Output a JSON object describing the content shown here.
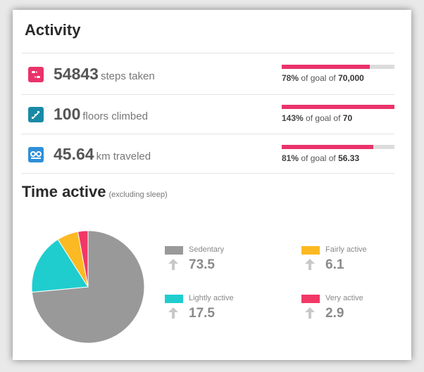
{
  "header": {
    "title": "Activity"
  },
  "stats": [
    {
      "icon": "footsteps-icon",
      "value": "54843",
      "unit": "steps taken",
      "percent": "78%",
      "goal_text": "of goal of",
      "goal_value": "70,000",
      "progress": 0.78,
      "color": "#e9336a"
    },
    {
      "icon": "stairs-icon",
      "value": "100",
      "unit": "floors climbed",
      "percent": "143%",
      "goal_text": "of goal of",
      "goal_value": "70",
      "progress": 1.0,
      "color": "#198aa6"
    },
    {
      "icon": "distance-icon",
      "value": "45.64",
      "unit": "km traveled",
      "percent": "81%",
      "goal_text": "of goal of",
      "goal_value": "56.33",
      "progress": 0.81,
      "color": "#2f8fd8"
    }
  ],
  "bar_color": "#e9336a",
  "time_active": {
    "title": "Time active",
    "subtitle": "(excluding sleep)",
    "legend": [
      {
        "label": "Sedentary",
        "value": "73.5",
        "color": "#999999"
      },
      {
        "label": "Fairly active",
        "value": "6.1",
        "color": "#fbb923"
      },
      {
        "label": "Lightly active",
        "value": "17.5",
        "color": "#1fcdcf"
      },
      {
        "label": "Very active",
        "value": "2.9",
        "color": "#f23866"
      }
    ]
  },
  "chart_data": {
    "type": "pie",
    "categories": [
      "Sedentary",
      "Lightly active",
      "Fairly active",
      "Very active"
    ],
    "values": [
      73.5,
      17.5,
      6.1,
      2.9
    ],
    "colors": [
      "#999999",
      "#1fcdcf",
      "#fbb923",
      "#f23866"
    ]
  }
}
